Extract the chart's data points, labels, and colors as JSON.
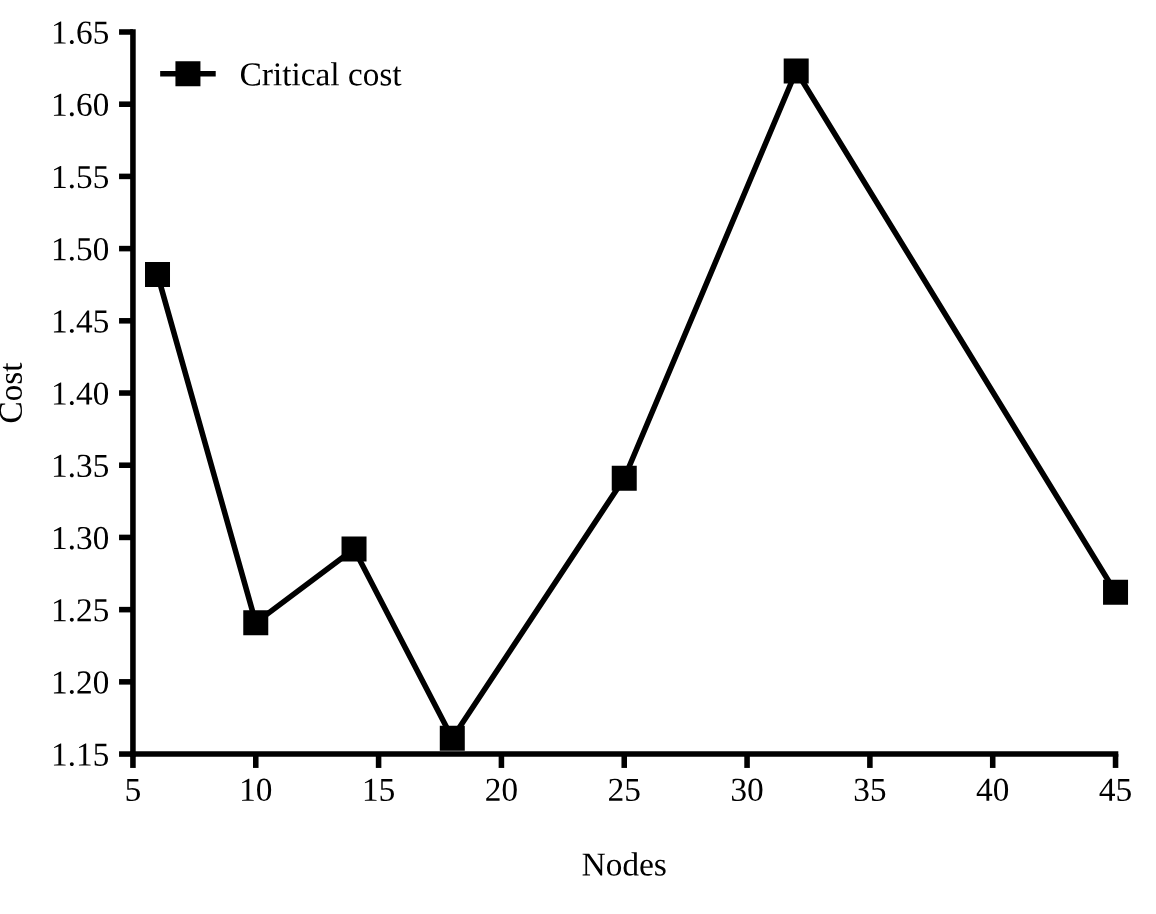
{
  "chart_data": {
    "type": "line",
    "xlabel": "Nodes",
    "ylabel": "Cost",
    "x": [
      6,
      10,
      14,
      18,
      25,
      32,
      45
    ],
    "series": [
      {
        "name": "Critical cost",
        "color": "#000000",
        "values": [
          1.482,
          1.241,
          1.292,
          1.161,
          1.341,
          1.623,
          1.262
        ]
      }
    ],
    "xlim": [
      5,
      45
    ],
    "xticks": [
      5,
      10,
      15,
      20,
      25,
      30,
      35,
      40,
      45
    ],
    "ylim": [
      1.15,
      1.65
    ],
    "yticks": [
      {
        "value": 1.15,
        "label": "1.15"
      },
      {
        "value": 1.2,
        "label": "1.20"
      },
      {
        "value": 1.25,
        "label": "1.25"
      },
      {
        "value": 1.3,
        "label": "1.30"
      },
      {
        "value": 1.35,
        "label": "1.35"
      },
      {
        "value": 1.4,
        "label": "1.40"
      },
      {
        "value": 1.45,
        "label": "1.45"
      },
      {
        "value": 1.5,
        "label": "1.50"
      },
      {
        "value": 1.55,
        "label": "1.55"
      },
      {
        "value": 1.6,
        "label": "1.60"
      },
      {
        "value": 1.65,
        "label": "1.65"
      }
    ],
    "grid": false,
    "legend": "top left",
    "marker": "square",
    "line_style": "solid"
  }
}
